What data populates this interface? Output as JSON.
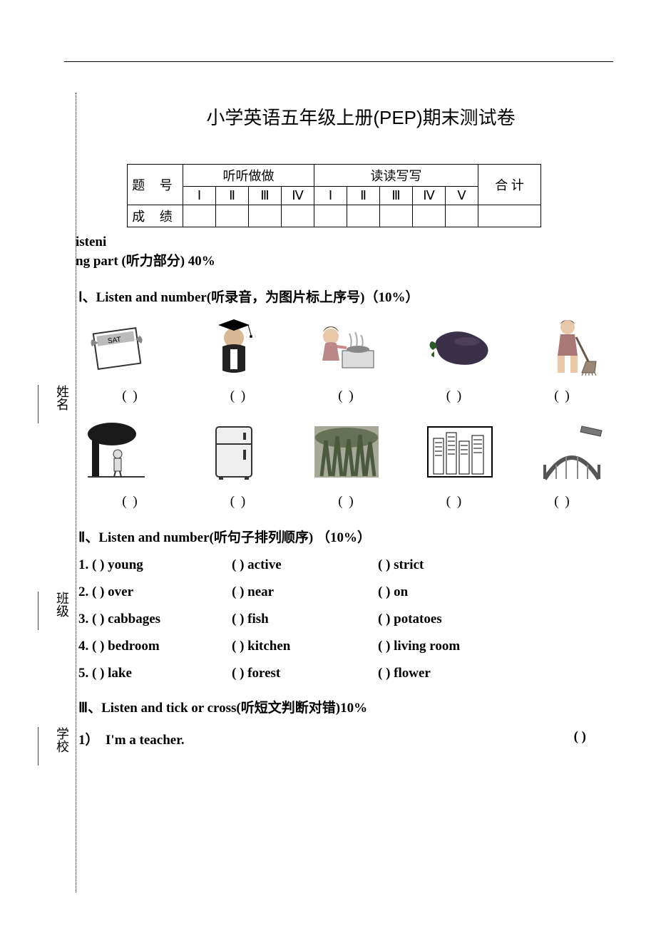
{
  "header_line_present": true,
  "title": "小学英语五年级上册(PEP)期末测试卷",
  "score_table": {
    "row1_label": "题   号",
    "group1_label": "听听做做",
    "group2_label": "读读写写",
    "total_label": "合   计",
    "group1_cols": [
      "Ⅰ",
      "Ⅱ",
      "Ⅲ",
      "Ⅳ"
    ],
    "group2_cols": [
      "Ⅰ",
      "Ⅱ",
      "Ⅲ",
      "Ⅳ",
      "Ⅴ"
    ],
    "row3_label": "成   绩"
  },
  "listening_header_prefix": "isteni",
  "listening_header_suffix": "ng part (听力部分)    40%",
  "section1": {
    "label": "Ⅰ、Listen and number(听录音，为图片标上序号)（10%）",
    "images_row1": [
      {
        "name": "calendar-sat",
        "alt": "calendar showing SAT",
        "color": "#555"
      },
      {
        "name": "graduate",
        "alt": "person in graduation cap",
        "color": "#333"
      },
      {
        "name": "cooking",
        "alt": "girl cooking at stove",
        "color": "#555"
      },
      {
        "name": "eggplant",
        "alt": "eggplant vegetable",
        "color": "#3a3a3a"
      },
      {
        "name": "sweeping",
        "alt": "girl sweeping floor",
        "color": "#555"
      }
    ],
    "images_row2": [
      {
        "name": "under-tree",
        "alt": "person under tree",
        "color": "#333"
      },
      {
        "name": "fridge",
        "alt": "refrigerator appliance",
        "color": "#444"
      },
      {
        "name": "forest",
        "alt": "forest trees",
        "color": "#606060"
      },
      {
        "name": "city",
        "alt": "city buildings",
        "color": "#222"
      },
      {
        "name": "bridge",
        "alt": "bridge arch",
        "color": "#555"
      }
    ],
    "paren_placeholder": "(       )"
  },
  "section2": {
    "label": "Ⅱ、Listen and number(听句子排列顺序) （10%）",
    "rows": [
      {
        "n": "1.",
        "a": "young",
        "b": "active",
        "c": "strict"
      },
      {
        "n": "2.",
        "a": "over",
        "b": "near",
        "c": "on"
      },
      {
        "n": "3.",
        "a": "cabbages",
        "b": "fish",
        "c": "potatoes"
      },
      {
        "n": "4.",
        "a": "bedroom",
        "b": "kitchen",
        "c": "living room"
      },
      {
        "n": "5.",
        "a": "lake",
        "b": "forest",
        "c": "flower"
      }
    ],
    "paren": "(       )"
  },
  "section3": {
    "label": "Ⅲ、Listen and tick or cross(听短文判断对错)10%",
    "item1_num": "1）",
    "item1_text": "I'm a teacher.",
    "item1_paren": "(           )"
  },
  "side": {
    "name": "姓名",
    "class": "班级",
    "school": "学校"
  }
}
